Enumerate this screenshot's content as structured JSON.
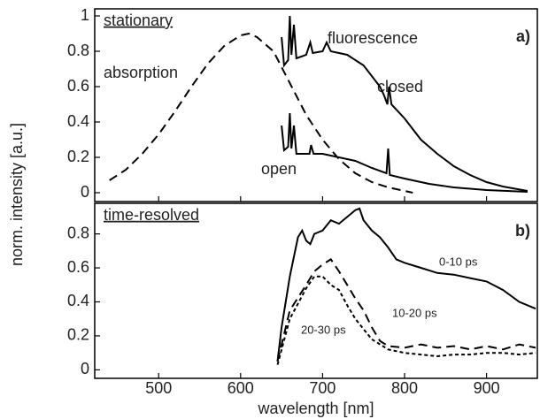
{
  "ylabel": "norm. intensity [a.u.]",
  "chart_data": [
    {
      "type": "line",
      "title": "stationary",
      "panel": "a)",
      "annotations": [
        "absorption",
        "fluorescence",
        "closed",
        "open"
      ],
      "xlim": [
        422,
        962
      ],
      "ylim": [
        -0.05,
        1.04
      ],
      "yticks": [
        0,
        0.2,
        0.4,
        0.6,
        0.8,
        1
      ],
      "series": [
        {
          "name": "absorption",
          "color": "#000000",
          "style": "dashed",
          "x": [
            440,
            460,
            480,
            500,
            520,
            540,
            560,
            580,
            600,
            610,
            620,
            640,
            660,
            680,
            700,
            720,
            740,
            760,
            780,
            800,
            810
          ],
          "values": [
            0.07,
            0.13,
            0.22,
            0.33,
            0.46,
            0.6,
            0.73,
            0.83,
            0.89,
            0.9,
            0.88,
            0.8,
            0.62,
            0.44,
            0.3,
            0.19,
            0.11,
            0.06,
            0.03,
            0.01,
            0
          ]
        },
        {
          "name": "closed",
          "color": "#000000",
          "style": "solid",
          "x": [
            650,
            653,
            658,
            660,
            662,
            665,
            668,
            680,
            685,
            688,
            700,
            705,
            710,
            730,
            750,
            770,
            775,
            779,
            781,
            784,
            800,
            820,
            840,
            860,
            880,
            900,
            920,
            950
          ],
          "values": [
            0.88,
            0.72,
            0.75,
            1.0,
            0.78,
            0.95,
            0.76,
            0.78,
            0.85,
            0.79,
            0.8,
            0.85,
            0.8,
            0.78,
            0.72,
            0.6,
            0.55,
            0.5,
            0.6,
            0.5,
            0.42,
            0.3,
            0.22,
            0.15,
            0.1,
            0.06,
            0.035,
            0.01
          ]
        },
        {
          "name": "open",
          "color": "#000000",
          "style": "solid",
          "x": [
            650,
            653,
            658,
            660,
            662,
            665,
            668,
            684,
            686,
            689,
            700,
            720,
            740,
            760,
            778,
            780,
            782,
            800,
            830,
            860,
            900,
            950
          ],
          "values": [
            0.38,
            0.24,
            0.26,
            0.45,
            0.25,
            0.38,
            0.22,
            0.22,
            0.27,
            0.22,
            0.22,
            0.2,
            0.18,
            0.14,
            0.11,
            0.25,
            0.1,
            0.08,
            0.05,
            0.03,
            0.015,
            0.005
          ]
        }
      ]
    },
    {
      "type": "line",
      "title": "time-resolved",
      "panel": "b)",
      "xlabel": "wavelength [nm]",
      "xlim": [
        422,
        962
      ],
      "xticks": [
        500,
        600,
        700,
        800,
        900
      ],
      "ylim": [
        -0.05,
        0.98
      ],
      "yticks": [
        0,
        0.2,
        0.4,
        0.6,
        0.8
      ],
      "series": [
        {
          "name": "0-10 ps",
          "color": "#000000",
          "style": "solid",
          "x": [
            645,
            650,
            660,
            670,
            675,
            680,
            685,
            690,
            700,
            710,
            720,
            730,
            740,
            745,
            750,
            760,
            770,
            780,
            790,
            800,
            820,
            840,
            860,
            880,
            900,
            920,
            940,
            960
          ],
          "values": [
            0.05,
            0.25,
            0.55,
            0.78,
            0.82,
            0.76,
            0.74,
            0.8,
            0.82,
            0.88,
            0.86,
            0.9,
            0.94,
            0.95,
            0.88,
            0.82,
            0.78,
            0.72,
            0.65,
            0.63,
            0.6,
            0.57,
            0.56,
            0.54,
            0.52,
            0.47,
            0.4,
            0.36
          ]
        },
        {
          "name": "10-20 ps",
          "color": "#000000",
          "style": "dashed",
          "x": [
            645,
            660,
            680,
            690,
            700,
            710,
            720,
            730,
            740,
            750,
            760,
            770,
            780,
            800,
            820,
            840,
            860,
            880,
            900,
            920,
            940,
            960
          ],
          "values": [
            0.05,
            0.35,
            0.5,
            0.58,
            0.62,
            0.65,
            0.58,
            0.5,
            0.42,
            0.35,
            0.25,
            0.17,
            0.14,
            0.13,
            0.15,
            0.13,
            0.14,
            0.12,
            0.14,
            0.12,
            0.15,
            0.13
          ]
        },
        {
          "name": "20-30 ps",
          "color": "#000000",
          "style": "dotted",
          "x": [
            645,
            660,
            680,
            690,
            700,
            710,
            720,
            730,
            740,
            750,
            760,
            780,
            800,
            820,
            840,
            860,
            880,
            900,
            920,
            940,
            960
          ],
          "values": [
            0.03,
            0.3,
            0.48,
            0.55,
            0.55,
            0.5,
            0.47,
            0.38,
            0.3,
            0.24,
            0.18,
            0.12,
            0.1,
            0.09,
            0.08,
            0.09,
            0.09,
            0.1,
            0.1,
            0.09,
            0.1
          ]
        }
      ]
    }
  ]
}
